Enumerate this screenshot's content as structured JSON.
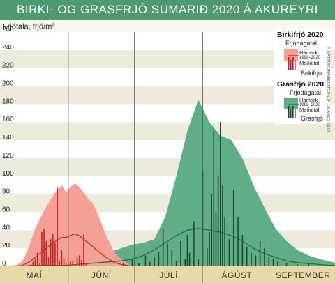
{
  "chart_data": {
    "type": "area",
    "title": "BIRKI- OG GRASFRJÓ SUMARIÐ 2020 Á AKUREYRI",
    "ylabel": "Frjótala, frjó/m",
    "ylabel_sup": "3",
    "ylim": [
      0,
      260
    ],
    "yticks": [
      0,
      20,
      40,
      60,
      80,
      100,
      120,
      140,
      160,
      180,
      200,
      220,
      240,
      260
    ],
    "xlim": [
      0,
      152
    ],
    "months": [
      {
        "label": "MAÍ",
        "start": 0,
        "end": 31
      },
      {
        "label": "JÚNÍ",
        "start": 31,
        "end": 61
      },
      {
        "label": "JÚLÍ",
        "start": 61,
        "end": 92
      },
      {
        "label": "ÁGÚST",
        "start": 92,
        "end": 123
      },
      {
        "label": "SEPTEMBER",
        "start": 123,
        "end": 152
      }
    ],
    "colors": {
      "birch_range": "#f4a096",
      "birch_mean": "#c0392b",
      "birch_bar": "#d31f1f",
      "grass_range": "#5fae85",
      "grass_mean": "#2e6e47",
      "grass_bar": "#1c4d2c",
      "title_bg": "#4e9a6e"
    },
    "series": [
      {
        "name": "Birkifrjó 2020",
        "range_label": "Hámark 1998–2020",
        "days": [
          5,
          8,
          10,
          12,
          14,
          15,
          16,
          18,
          20,
          22,
          24,
          26,
          28,
          30,
          32,
          34,
          36,
          38,
          40,
          42,
          44,
          46,
          48,
          50,
          52,
          55,
          58,
          60
        ],
        "max": [
          0,
          2,
          5,
          15,
          28,
          35,
          42,
          52,
          62,
          70,
          78,
          85,
          90,
          82,
          88,
          92,
          88,
          82,
          75,
          70,
          60,
          48,
          35,
          25,
          15,
          8,
          3,
          0
        ],
        "mean": [
          0,
          0,
          1,
          3,
          6,
          8,
          10,
          14,
          18,
          22,
          26,
          29,
          32,
          32,
          34,
          36,
          34,
          30,
          26,
          22,
          18,
          14,
          10,
          7,
          4,
          2,
          1,
          0
        ],
        "bar_days": [
          14,
          15,
          16,
          17,
          18,
          19,
          20,
          21,
          22,
          23,
          24,
          25,
          26,
          27,
          28,
          29,
          30,
          31,
          32,
          33,
          34,
          35,
          36,
          37,
          38,
          39
        ],
        "bar_values": [
          2,
          5,
          8,
          15,
          4,
          38,
          42,
          28,
          10,
          30,
          36,
          26,
          88,
          6,
          18,
          9,
          4,
          3,
          5,
          6,
          2,
          10,
          12,
          7,
          36,
          2
        ]
      },
      {
        "name": "Grasfrjó 2020",
        "range_label": "Hámark 1998–2020",
        "days": [
          0,
          5,
          10,
          15,
          20,
          25,
          30,
          35,
          40,
          45,
          50,
          55,
          60,
          65,
          70,
          75,
          80,
          85,
          90,
          95,
          100,
          105,
          110,
          115,
          120,
          125,
          130,
          135,
          140,
          145,
          150,
          152
        ],
        "max": [
          0,
          1,
          1,
          1,
          2,
          2,
          3,
          5,
          8,
          12,
          16,
          20,
          24,
          26,
          30,
          55,
          100,
          150,
          185,
          160,
          145,
          140,
          120,
          90,
          65,
          42,
          28,
          18,
          12,
          8,
          5,
          4
        ],
        "mean": [
          0,
          0,
          0,
          1,
          1,
          1,
          1,
          2,
          3,
          4,
          5,
          6,
          8,
          12,
          18,
          26,
          34,
          40,
          42,
          40,
          38,
          34,
          28,
          20,
          14,
          10,
          6,
          4,
          3,
          2,
          1,
          1
        ],
        "bar_days": [
          56,
          60,
          63,
          66,
          68,
          70,
          72,
          74,
          76,
          78,
          80,
          82,
          84,
          85,
          86,
          88,
          90,
          92,
          94,
          95,
          96,
          97,
          98,
          99,
          100,
          101,
          102,
          104,
          106,
          108,
          110,
          112,
          114,
          116,
          118,
          120,
          122,
          124,
          126,
          130,
          135,
          140,
          145
        ],
        "bar_values": [
          4,
          8,
          3,
          12,
          5,
          10,
          16,
          42,
          25,
          18,
          6,
          28,
          8,
          35,
          15,
          50,
          8,
          105,
          20,
          38,
          80,
          150,
          60,
          100,
          160,
          90,
          55,
          30,
          85,
          55,
          35,
          22,
          15,
          12,
          28,
          20,
          10,
          8,
          5,
          4,
          2,
          3,
          1
        ]
      }
    ],
    "legend": {
      "birch": {
        "title": "Birkifrjó 2020",
        "pollen_count": "Frjódagatal",
        "max": "Hámark",
        "period": "1998–2020",
        "mean": "Meðaltal",
        "bar": "Birkifrjó"
      },
      "grass": {
        "title": "Grasfrjó 2020",
        "pollen_count": "Frjódagatal",
        "max": "Hámark",
        "period": "1998–2020",
        "mean": "Meðaltal",
        "bar": "Grasfrjó"
      }
    },
    "credit": "© NÁTTÚRUFRÆÐISTOFNUN ÍSLANDS 2020"
  }
}
